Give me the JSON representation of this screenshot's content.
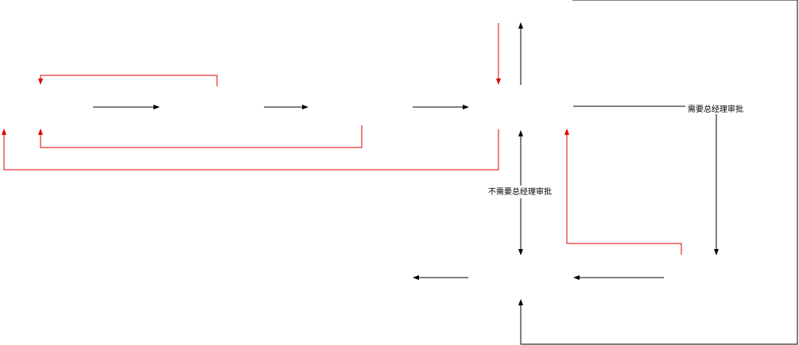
{
  "colors": {
    "flow": "#000000",
    "return": "#e00000",
    "background": "#ffffff"
  },
  "labels": {
    "need_gm_approval": "需要总经理审批",
    "no_need_gm_approval": "不需要总经理审批"
  }
}
